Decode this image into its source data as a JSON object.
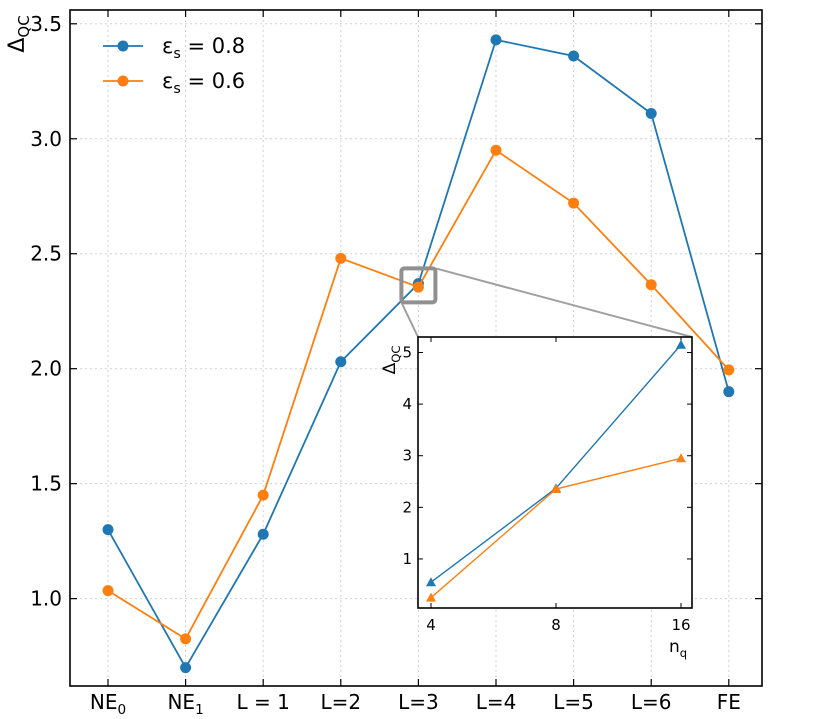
{
  "chart_data": [
    {
      "type": "line",
      "categories": [
        {
          "text": "NE",
          "sub": "0"
        },
        {
          "text": "NE",
          "sub": "1"
        },
        {
          "text": "L = 1",
          "sub": ""
        },
        {
          "text": "L=2",
          "sub": ""
        },
        {
          "text": "L=3",
          "sub": ""
        },
        {
          "text": "L=4",
          "sub": ""
        },
        {
          "text": "L=5",
          "sub": ""
        },
        {
          "text": "L=6",
          "sub": ""
        },
        {
          "text": "FE",
          "sub": ""
        }
      ],
      "ylabel": {
        "text": "Δ",
        "sub": "QC"
      },
      "ylim": [
        0.62,
        3.56
      ],
      "yticks": [
        "1.0",
        "1.5",
        "2.0",
        "2.5",
        "3.0",
        "3.5"
      ],
      "ytick_values": [
        1.0,
        1.5,
        2.0,
        2.5,
        3.0,
        3.5
      ],
      "grid": true,
      "legend_position": "top-left",
      "series": [
        {
          "legend": {
            "symbol": "ε",
            "sub": "s",
            "rest": " = 0.8"
          },
          "color": "#1f77b4",
          "marker": "circle",
          "values": [
            1.3,
            0.7,
            1.28,
            2.03,
            2.37,
            3.43,
            3.36,
            3.11,
            1.9
          ]
        },
        {
          "legend": {
            "symbol": "ε",
            "sub": "s",
            "rest": " = 0.6"
          },
          "color": "#ff7f0e",
          "marker": "circle",
          "values": [
            1.035,
            0.825,
            1.45,
            2.48,
            2.355,
            2.95,
            2.72,
            2.365,
            1.995
          ]
        }
      ],
      "zoom_box_at": "L=3"
    },
    {
      "type": "line",
      "name": "inset",
      "x": [
        4,
        8,
        16
      ],
      "xticks": [
        "4",
        "8",
        "16"
      ],
      "xlabel": {
        "text": "n",
        "sub": "q"
      },
      "ylabel": {
        "text": "Δ",
        "sub": "QC"
      },
      "yticks": [
        "1",
        "2",
        "3",
        "4",
        "5"
      ],
      "ytick_values": [
        1,
        2,
        3,
        4,
        5
      ],
      "ylim": [
        0.05,
        5.3
      ],
      "grid": false,
      "series": [
        {
          "color": "#1f77b4",
          "marker": "triangle",
          "values": [
            0.55,
            2.37,
            5.15
          ]
        },
        {
          "color": "#ff7f0e",
          "marker": "triangle",
          "values": [
            0.25,
            2.355,
            2.95
          ]
        }
      ]
    }
  ]
}
